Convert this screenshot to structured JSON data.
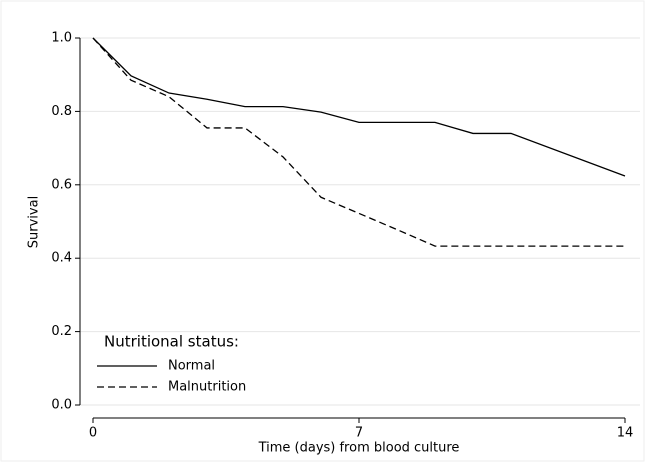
{
  "chart_data": {
    "type": "line",
    "x_label": "Time (days) from blood culture",
    "y_label": "Survival",
    "legend_title": "Nutritional status:",
    "x": [
      0,
      1,
      2,
      3,
      4,
      5,
      6,
      7,
      8,
      9,
      10,
      11,
      14
    ],
    "series": [
      {
        "name": "Normal",
        "color": "#000000",
        "dash": "solid",
        "values": [
          1.0,
          0.897,
          0.85,
          0.833,
          0.813,
          0.813,
          0.798,
          0.77,
          0.77,
          0.77,
          0.74,
          0.74,
          0.624
        ]
      },
      {
        "name": "Malnutrition",
        "color": "#000000",
        "dash": "dashed",
        "values": [
          1.0,
          0.885,
          0.84,
          0.755,
          0.755,
          0.676,
          0.566,
          0.522,
          0.478,
          0.433,
          0.433,
          0.433,
          0.433
        ]
      }
    ],
    "xlim": [
      0,
      14
    ],
    "xticks": [
      0,
      7,
      14
    ],
    "ylim": [
      0,
      1.0
    ],
    "yticks": [
      {
        "value": 0,
        "label": "0.0"
      },
      0.2,
      0.4,
      0.6,
      0.8,
      {
        "value": 1.0,
        "label": "1.0"
      }
    ],
    "grid": true,
    "legend": "lower left"
  }
}
